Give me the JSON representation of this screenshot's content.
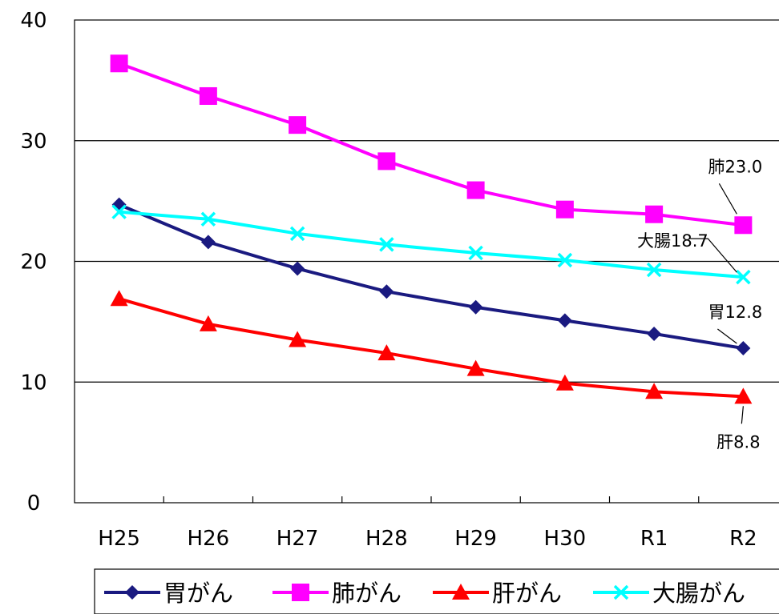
{
  "chart_data": {
    "type": "line",
    "categories": [
      "H25",
      "H26",
      "H27",
      "H28",
      "H29",
      "H30",
      "R1",
      "R2"
    ],
    "ylim": [
      0,
      40
    ],
    "yticks": [
      0,
      10,
      20,
      30,
      40
    ],
    "grid": true,
    "legend_position": "bottom",
    "series": [
      {
        "name": "胃がん",
        "color": "#1a1a80",
        "marker": "diamond",
        "values": [
          24.7,
          21.6,
          19.4,
          17.5,
          16.2,
          15.1,
          14.0,
          12.8
        ]
      },
      {
        "name": "肺がん",
        "color": "#ff00ff",
        "marker": "square",
        "values": [
          36.4,
          33.7,
          31.3,
          28.3,
          25.9,
          24.3,
          23.9,
          23.0
        ]
      },
      {
        "name": "肝がん",
        "color": "#ff0000",
        "marker": "triangle",
        "values": [
          16.9,
          14.8,
          13.5,
          12.4,
          11.1,
          9.9,
          9.2,
          8.8
        ]
      },
      {
        "name": "大腸がん",
        "color": "#00ffff",
        "marker": "x",
        "values": [
          24.1,
          23.5,
          22.3,
          21.4,
          20.7,
          20.1,
          19.3,
          18.7
        ]
      }
    ],
    "annotations": [
      {
        "text": "肺23.0",
        "series": 1
      },
      {
        "text": "大腸18.7",
        "series": 3
      },
      {
        "text": "胃12.8",
        "series": 0
      },
      {
        "text": "肝8.8",
        "series": 2
      }
    ]
  }
}
